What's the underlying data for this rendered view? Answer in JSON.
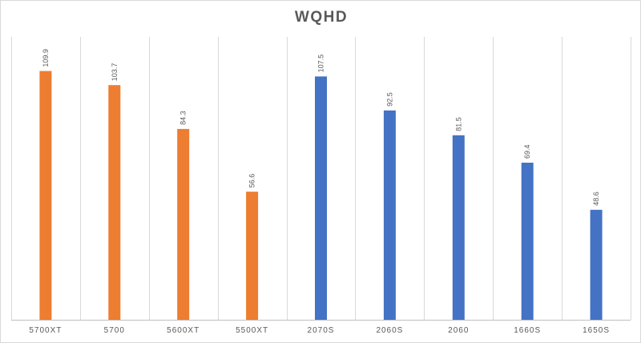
{
  "chart_data": {
    "type": "bar",
    "title": "WQHD",
    "xlabel": "",
    "ylabel": "",
    "categories": [
      "5700XT",
      "5700",
      "5600XT",
      "5500XT",
      "2070S",
      "2060S",
      "2060",
      "1660S",
      "1650S"
    ],
    "values": [
      109.9,
      103.7,
      84.3,
      56.6,
      107.5,
      92.5,
      81.5,
      69.4,
      48.6
    ],
    "bar_colors": [
      "#ED7D31",
      "#ED7D31",
      "#ED7D31",
      "#ED7D31",
      "#4472C4",
      "#4472C4",
      "#4472C4",
      "#4472C4",
      "#4472C4"
    ],
    "data_label_strings": [
      "109.9",
      "103.7",
      "84.3",
      "56.6",
      "107.5",
      "92.5",
      "81.5",
      "69.4",
      "48.6"
    ],
    "ylim": [
      0,
      125
    ],
    "grid": "vertical",
    "legend": "none",
    "data_labels": "rotated-above-bars"
  }
}
